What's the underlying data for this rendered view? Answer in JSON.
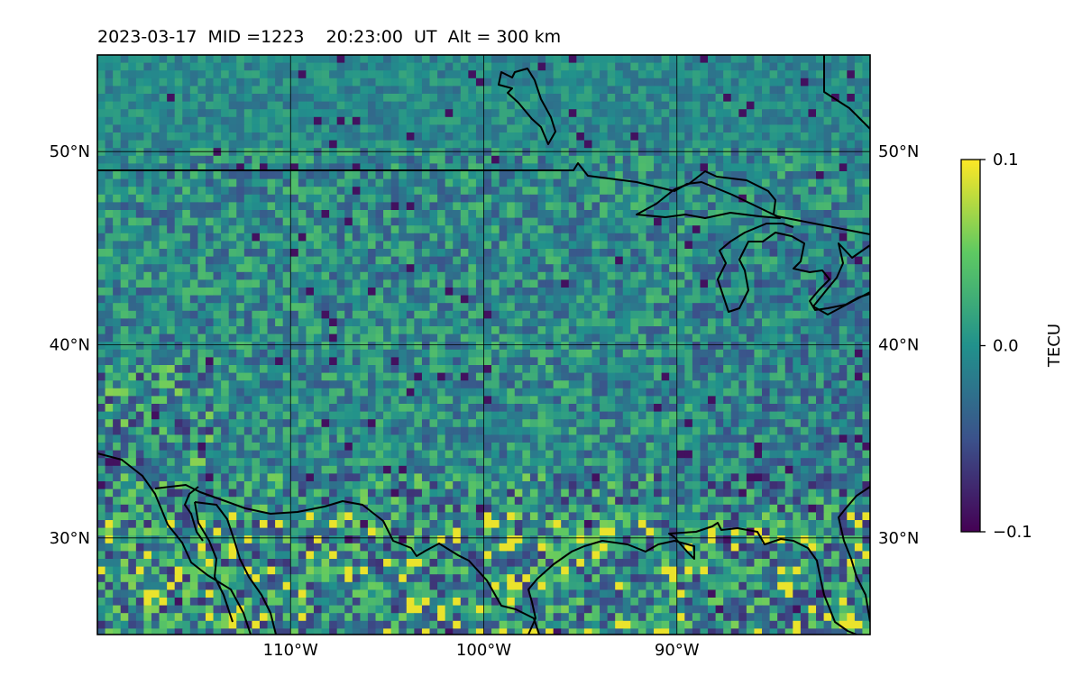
{
  "header": {
    "title": "2023-03-17  MID =1223    20:23:00  UT  Alt = 300 km"
  },
  "map": {
    "projection": "equirectangular",
    "lon_range": [
      -120,
      -80
    ],
    "lat_range": [
      25,
      55
    ],
    "lat_ticks": [
      {
        "value": 50,
        "label": "50°N"
      },
      {
        "value": 40,
        "label": "40°N"
      },
      {
        "value": 30,
        "label": "30°N"
      }
    ],
    "lon_ticks": [
      {
        "value": -110,
        "label": "110°W"
      },
      {
        "value": -100,
        "label": "100°W"
      },
      {
        "value": -90,
        "label": "90°W"
      }
    ],
    "gridlines": true,
    "field": "TEC perturbation",
    "coastlines_and_borders": true
  },
  "colorbar": {
    "label": "TECU",
    "colormap": "viridis",
    "range": [
      -0.1,
      0.1
    ],
    "ticks": [
      {
        "value": 0.1,
        "label": "0.1"
      },
      {
        "value": 0.0,
        "label": "0.0"
      },
      {
        "value": -0.1,
        "label": "−0.1"
      }
    ],
    "colors": [
      "#440154",
      "#3b528b",
      "#21918c",
      "#5ec962",
      "#fde725"
    ]
  }
}
